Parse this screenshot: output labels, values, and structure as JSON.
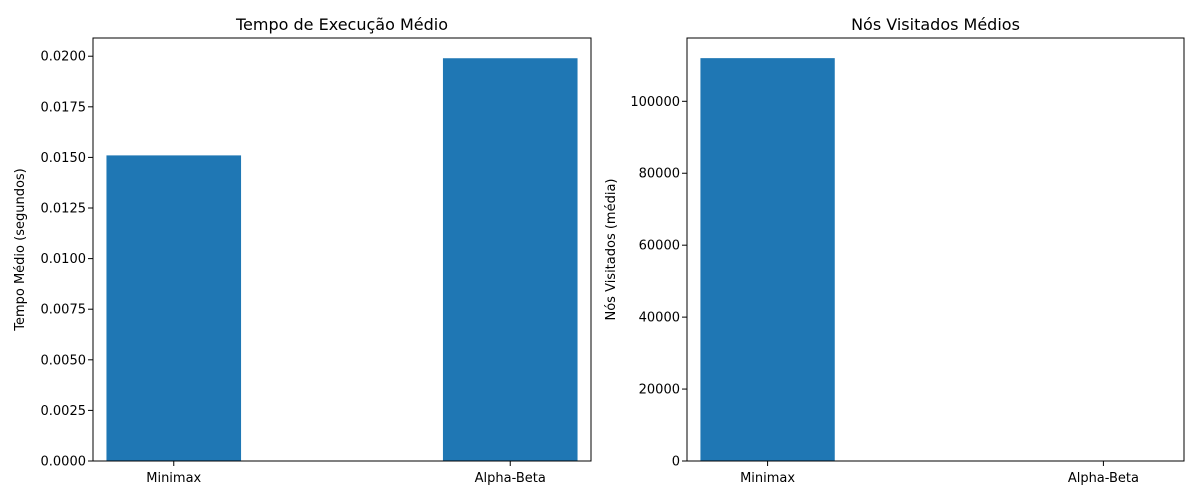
{
  "chart_data": [
    {
      "type": "bar",
      "title": "Tempo de Execução Médio",
      "xlabel": "",
      "ylabel": "Tempo Médio (segundos)",
      "categories": [
        "Minimax",
        "Alpha-Beta"
      ],
      "values": [
        0.0151,
        0.0199
      ],
      "ylim": [
        0,
        0.0209
      ],
      "yticks": [
        0,
        0.0025,
        0.005,
        0.0075,
        0.01,
        0.0125,
        0.015,
        0.0175,
        0.02
      ],
      "ytick_labels": [
        "0.0000",
        "0.0025",
        "0.0050",
        "0.0075",
        "0.0100",
        "0.0125",
        "0.0150",
        "0.0175",
        "0.0200"
      ],
      "grid": false,
      "color": "#1f77b4"
    },
    {
      "type": "bar",
      "title": "Nós Visitados Médios",
      "xlabel": "",
      "ylabel": "Nós Visitados (média)",
      "categories": [
        "Minimax",
        "Alpha-Beta"
      ],
      "values": [
        112000,
        0
      ],
      "ylim": [
        0,
        117600
      ],
      "yticks": [
        0,
        20000,
        40000,
        60000,
        80000,
        100000
      ],
      "ytick_labels": [
        "0",
        "20000",
        "40000",
        "60000",
        "80000",
        "100000"
      ],
      "grid": false,
      "color": "#1f77b4"
    }
  ]
}
